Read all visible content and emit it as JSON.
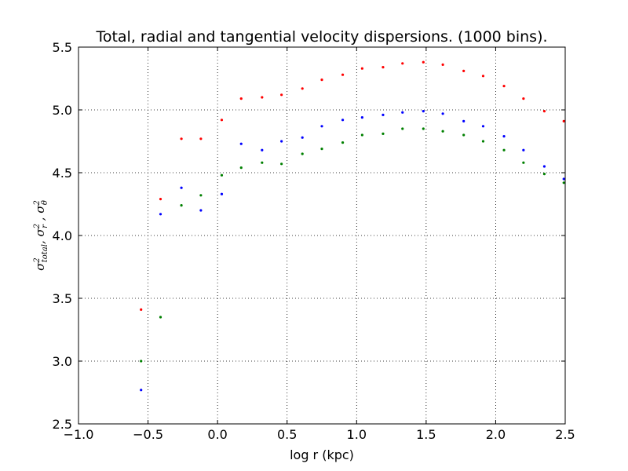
{
  "chart_data": {
    "type": "scatter",
    "title": "Total, radial and tangential velocity dispersions. (1000 bins).",
    "xlabel": "log r (kpc)",
    "ylabel": "σ²total, σ²r , σ²θ",
    "ylabel_parts": [
      {
        "base": "σ",
        "sup": "2",
        "sub": "total",
        "sep": ", "
      },
      {
        "base": "σ",
        "sup": "2",
        "sub": "r",
        "sep": " , "
      },
      {
        "base": "σ",
        "sup": "2",
        "sub": "θ",
        "sep": ""
      }
    ],
    "xlim": [
      -1.0,
      2.5
    ],
    "ylim": [
      2.5,
      5.5
    ],
    "xticks": [
      -1.0,
      -0.5,
      0.0,
      0.5,
      1.0,
      1.5,
      2.0,
      2.5
    ],
    "xtick_labels": [
      "−1.0",
      "−0.5",
      "0.0",
      "0.5",
      "1.0",
      "1.5",
      "2.0",
      "2.5"
    ],
    "yticks": [
      2.5,
      3.0,
      3.5,
      4.0,
      4.5,
      5.0,
      5.5
    ],
    "ytick_labels": [
      "2.5",
      "3.0",
      "3.5",
      "4.0",
      "4.5",
      "5.0",
      "5.5"
    ],
    "grid": true,
    "grid_style": "dotted",
    "series": [
      {
        "color": "#ff0000",
        "x": [
          -0.55,
          -0.41,
          -0.26,
          -0.12,
          0.03,
          0.17,
          0.32,
          0.46,
          0.61,
          0.75,
          0.9,
          1.04,
          1.19,
          1.33,
          1.48,
          1.62,
          1.77,
          1.91,
          2.06,
          2.2,
          2.35,
          2.49
        ],
        "y": [
          3.41,
          4.29,
          4.77,
          4.77,
          4.92,
          5.09,
          5.1,
          5.12,
          5.17,
          5.24,
          5.28,
          5.33,
          5.34,
          5.37,
          5.38,
          5.36,
          5.31,
          5.27,
          5.19,
          5.09,
          4.99,
          4.91
        ]
      },
      {
        "color": "#0000ff",
        "x": [
          -0.55,
          -0.41,
          -0.26,
          -0.12,
          0.03,
          0.17,
          0.32,
          0.46,
          0.61,
          0.75,
          0.9,
          1.04,
          1.19,
          1.33,
          1.48,
          1.62,
          1.77,
          1.91,
          2.06,
          2.2,
          2.35,
          2.49
        ],
        "y": [
          2.77,
          4.17,
          4.38,
          4.2,
          4.33,
          4.73,
          4.68,
          4.75,
          4.78,
          4.87,
          4.92,
          4.94,
          4.96,
          4.98,
          4.99,
          4.97,
          4.91,
          4.87,
          4.79,
          4.68,
          4.55,
          4.45
        ]
      },
      {
        "color": "#008000",
        "x": [
          -0.55,
          -0.41,
          -0.26,
          -0.12,
          0.03,
          0.17,
          0.32,
          0.46,
          0.61,
          0.75,
          0.9,
          1.04,
          1.19,
          1.33,
          1.48,
          1.62,
          1.77,
          1.91,
          2.06,
          2.2,
          2.35,
          2.49
        ],
        "y": [
          3.0,
          3.35,
          4.24,
          4.32,
          4.48,
          4.54,
          4.58,
          4.57,
          4.65,
          4.69,
          4.74,
          4.8,
          4.81,
          4.85,
          4.85,
          4.83,
          4.8,
          4.75,
          4.68,
          4.58,
          4.49,
          4.42
        ]
      }
    ]
  }
}
